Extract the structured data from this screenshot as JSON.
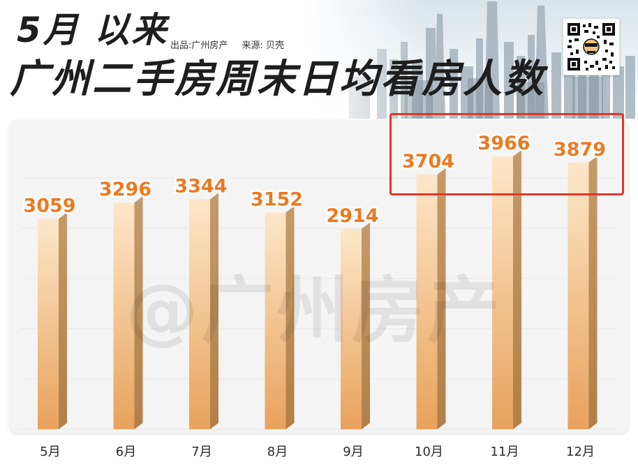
{
  "header": {
    "title_line1": "5月 以来",
    "title_line2": "广州二手房周末日均看房人数",
    "source_publisher": "出品:广州房产",
    "source_data": "来源: 贝壳"
  },
  "watermark": "@广州房产",
  "chart_data": {
    "type": "bar",
    "title": "5月 以来 广州二手房周末日均看房人数",
    "xlabel": "",
    "ylabel": "",
    "categories": [
      "5月",
      "6月",
      "7月",
      "8月",
      "9月",
      "10月",
      "11月",
      "12月"
    ],
    "values": [
      3059,
      3296,
      3344,
      3152,
      2914,
      3704,
      3966,
      3879
    ],
    "highlighted_categories": [
      "10月",
      "11月",
      "12月"
    ],
    "colors": {
      "bar_top": "#fde7c9",
      "bar_bottom": "#e8a25c",
      "bar_side": "#c08850",
      "label": "#ea7a22",
      "highlight": "#e0362c"
    }
  }
}
